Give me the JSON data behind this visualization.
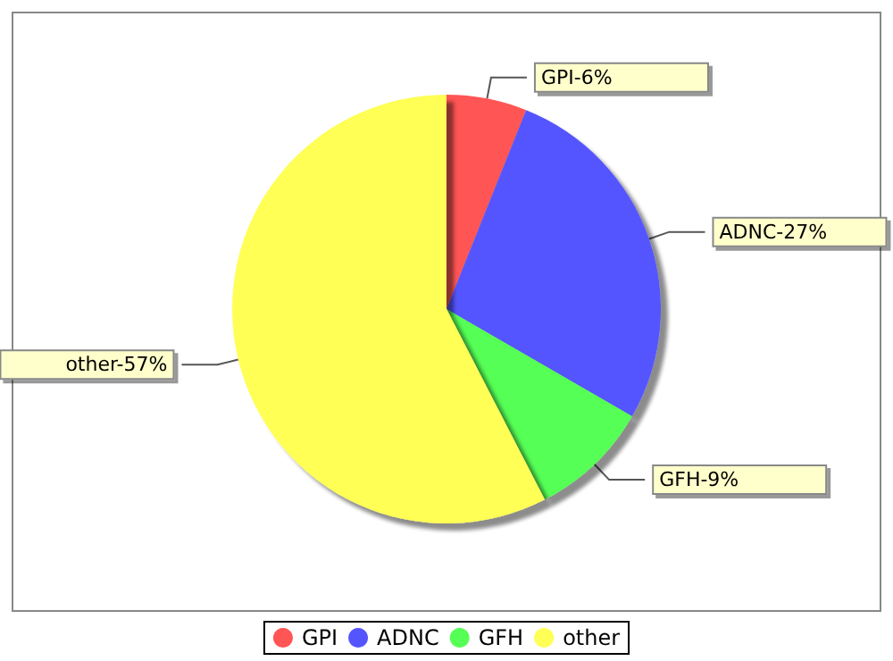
{
  "chart_data": {
    "type": "pie",
    "categories": [
      "GPI",
      "ADNC",
      "GFH",
      "other"
    ],
    "values": [
      6,
      27,
      9,
      57
    ],
    "colors": [
      "#ff5555",
      "#5555ff",
      "#55ff55",
      "#ffff55"
    ],
    "value_labels": [
      "GPI-6%",
      "ADNC-27%",
      "GFH-9%",
      "other-57%"
    ],
    "legend": "bottom"
  }
}
